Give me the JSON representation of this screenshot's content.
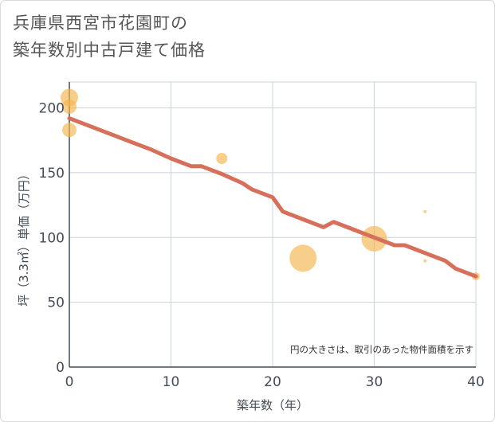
{
  "title": {
    "line1": "兵庫県西宮市花園町の",
    "line2": "築年数別中古戸建て価格"
  },
  "chart_data": {
    "type": "scatter",
    "title": "兵庫県西宮市花園町の築年数別中古戸建て価格",
    "xlabel": "築年数（年）",
    "ylabel": "坪（3.3㎡）単価（万円）",
    "xlim": [
      0,
      40
    ],
    "ylim": [
      0,
      220
    ],
    "xticks": [
      0,
      10,
      20,
      30,
      40
    ],
    "yticks": [
      0,
      50,
      100,
      150,
      200
    ],
    "grid": true,
    "note": "円の大きさは、取引のあった物件面積を示す",
    "colors": {
      "bubble": "#f2b54b",
      "trend": "#d6705a",
      "grid": "#c8d3dc",
      "axis": "#444c55"
    },
    "bubbles": [
      {
        "x": 0,
        "y": 208,
        "size": 11
      },
      {
        "x": 0,
        "y": 201,
        "size": 9
      },
      {
        "x": 0,
        "y": 183,
        "size": 9
      },
      {
        "x": 15,
        "y": 161,
        "size": 7
      },
      {
        "x": 23,
        "y": 84,
        "size": 17
      },
      {
        "x": 30,
        "y": 99,
        "size": 16
      },
      {
        "x": 35,
        "y": 120,
        "size": 2
      },
      {
        "x": 35,
        "y": 82,
        "size": 2
      },
      {
        "x": 40,
        "y": 70,
        "size": 5
      }
    ],
    "trend": {
      "name": "推移",
      "x": [
        0,
        2,
        4,
        6,
        8,
        10,
        12,
        13,
        15,
        17,
        18,
        20,
        21,
        23,
        25,
        26,
        28,
        30,
        32,
        33,
        35,
        37,
        38,
        40
      ],
      "y": [
        192,
        186,
        180,
        174,
        168,
        161,
        155,
        155,
        149,
        142,
        137,
        131,
        120,
        114,
        108,
        112,
        106,
        100,
        94,
        94,
        88,
        82,
        76,
        70
      ]
    }
  }
}
